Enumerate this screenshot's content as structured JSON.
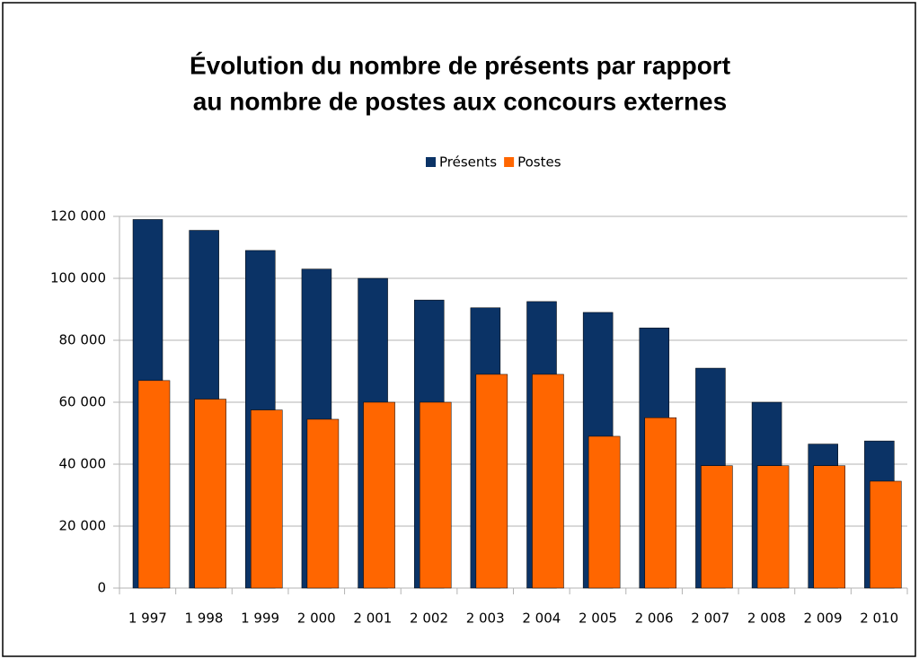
{
  "chart_data": {
    "type": "bar",
    "title": [
      "Évolution du nombre de présents par rapport",
      "au nombre de postes aux concours externes"
    ],
    "categories": [
      "1 997",
      "1 998",
      "1 999",
      "2 000",
      "2 001",
      "2 002",
      "2 003",
      "2 004",
      "2 005",
      "2 006",
      "2 007",
      "2 008",
      "2 009",
      "2 010"
    ],
    "series": [
      {
        "name": "Présents",
        "color": "#0b3366",
        "values": [
          119000,
          115500,
          109000,
          103000,
          100000,
          93000,
          90500,
          92500,
          89000,
          84000,
          71000,
          60000,
          46500,
          47500
        ]
      },
      {
        "name": "Postes",
        "color": "#ff6600",
        "values": [
          67000,
          61000,
          57500,
          54500,
          60000,
          60000,
          69000,
          69000,
          49000,
          55000,
          39500,
          39500,
          39500,
          34500
        ]
      }
    ],
    "ylim": [
      0,
      120000
    ],
    "yticks": [
      0,
      {
        "value": 20000,
        "label": "20 000"
      },
      {
        "value": 40000,
        "label": "40 000"
      },
      {
        "value": 60000,
        "label": "60 000"
      },
      {
        "value": 80000,
        "label": "80 000"
      },
      {
        "value": 100000,
        "label": "100 000"
      },
      {
        "value": 120000,
        "label": "120 000"
      }
    ],
    "grid": true,
    "legend": "top"
  }
}
